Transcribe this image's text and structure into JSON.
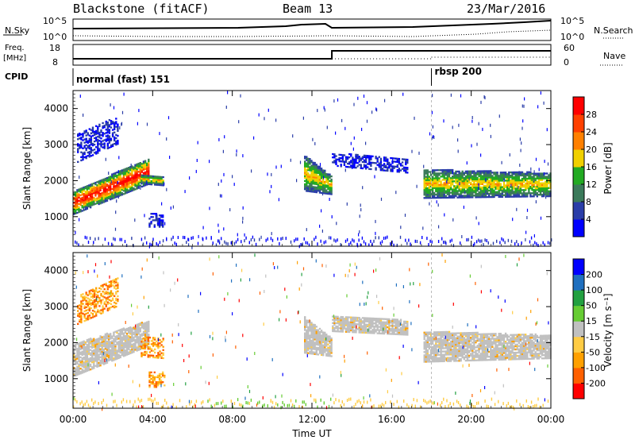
{
  "header": {
    "station": "Blackstone (fitACF)",
    "beam": "Beam 13",
    "date": "23/Mar/2016"
  },
  "noise_panel": {
    "left_label": "N.Sky",
    "right_label": "N.Search",
    "left_ticks": [
      "10^5",
      "10^0"
    ],
    "right_ticks": [
      "10^5",
      "10^0"
    ]
  },
  "freq_panel": {
    "left_label_top": "Freq.",
    "left_label_unit": "[MHz]",
    "right_label": "Nave",
    "left_ticks": [
      "18",
      "8"
    ],
    "right_ticks": [
      "60",
      "0"
    ],
    "freq_step_time_h": 13.0
  },
  "cpid_panel": {
    "label": "CPID",
    "segments": [
      {
        "start_h": 0.0,
        "name": "normal (fast) 151"
      },
      {
        "start_h": 18.0,
        "name": "rbsp 200"
      }
    ]
  },
  "colors": {
    "power_scale": [
      "#0000ff",
      "#2a3da8",
      "#3b7a5a",
      "#22aa22",
      "#f0d000",
      "#ff8000",
      "#ff4000",
      "#ff0000"
    ],
    "velocity_scale": [
      "#ff0000",
      "#ff6000",
      "#ffa000",
      "#ffcc44",
      "#c0c0c0",
      "#66cc33",
      "#22a040",
      "#1f6fbf",
      "#0000ff"
    ],
    "ground_scatter": "#c0c0c0",
    "frame": "#000000"
  },
  "chart_data": [
    {
      "type": "heatmap",
      "panel": "power",
      "xlabel": "",
      "ylabel": "Slant Range [km]",
      "xlim_h": [
        0,
        24
      ],
      "ylim_km": [
        180,
        4500
      ],
      "y_ticks": [
        1000,
        2000,
        3000,
        4000
      ],
      "y_tick_labels": [
        "1000",
        "2000",
        "3000",
        "4000"
      ],
      "colorbar": {
        "label": "Power [dB]",
        "ticks": [
          "4",
          "8",
          "12",
          "16",
          "20",
          "24",
          "28"
        ],
        "range": [
          0,
          32
        ]
      },
      "echo_regions": [
        {
          "t0": 0.0,
          "t1": 3.8,
          "r0_start": 1050,
          "r1_start": 1700,
          "r0_end": 1900,
          "r1_end": 2600,
          "level": "high"
        },
        {
          "t0": 0.2,
          "t1": 2.2,
          "r0_start": 2500,
          "r1_start": 3300,
          "r0_end": 3000,
          "r1_end": 3800,
          "level": "low"
        },
        {
          "t0": 3.4,
          "t1": 4.5,
          "r0_start": 1900,
          "r1_start": 2150,
          "r0_end": 1850,
          "r1_end": 2100,
          "level": "mid"
        },
        {
          "t0": 3.8,
          "t1": 4.5,
          "r0_start": 700,
          "r1_start": 1100,
          "r0_end": 700,
          "r1_end": 1050,
          "level": "low"
        },
        {
          "t0": 11.6,
          "t1": 13.0,
          "r0_start": 1700,
          "r1_start": 2700,
          "r0_end": 1600,
          "r1_end": 2100,
          "level": "mid"
        },
        {
          "t0": 13.0,
          "t1": 16.8,
          "r0_start": 2400,
          "r1_start": 2750,
          "r0_end": 2200,
          "r1_end": 2600,
          "level": "low"
        },
        {
          "t0": 17.6,
          "t1": 24.0,
          "r0_start": 1500,
          "r1_start": 2300,
          "r0_end": 1550,
          "r1_end": 2200,
          "level": "mid"
        }
      ],
      "ground_scatter_band_km": [
        180,
        420
      ]
    },
    {
      "type": "heatmap",
      "panel": "velocity",
      "xlabel": "Time UT",
      "ylabel": "Slant Range [km]",
      "xlim_h": [
        0,
        24
      ],
      "ylim_km": [
        180,
        4500
      ],
      "x_ticks_h": [
        0,
        4,
        8,
        12,
        16,
        20,
        24
      ],
      "x_tick_labels": [
        "00:00",
        "04:00",
        "08:00",
        "12:00",
        "16:00",
        "20:00",
        "00:00"
      ],
      "y_ticks": [
        1000,
        2000,
        3000,
        4000
      ],
      "y_tick_labels": [
        "1000",
        "2000",
        "3000",
        "4000"
      ],
      "colorbar": {
        "label": "Velocity [m s⁻¹]",
        "ticks": [
          "-200",
          "-100",
          "-50",
          "-15",
          "15",
          "50",
          "100",
          "200"
        ],
        "range": [
          -250,
          250
        ]
      },
      "echo_regions": [
        {
          "t0": 0.0,
          "t1": 3.8,
          "r0_start": 1050,
          "r1_start": 1950,
          "r0_end": 1900,
          "r1_end": 2600,
          "level": "gs"
        },
        {
          "t0": 0.2,
          "t1": 2.2,
          "r0_start": 2500,
          "r1_start": 3300,
          "r0_end": 3000,
          "r1_end": 3800,
          "level": "neg"
        },
        {
          "t0": 3.4,
          "t1": 4.5,
          "r0_start": 1600,
          "r1_start": 2150,
          "r0_end": 1550,
          "r1_end": 2100,
          "level": "neg"
        },
        {
          "t0": 3.8,
          "t1": 4.6,
          "r0_start": 750,
          "r1_start": 1200,
          "r0_end": 750,
          "r1_end": 1150,
          "level": "neg"
        },
        {
          "t0": 11.6,
          "t1": 13.0,
          "r0_start": 1700,
          "r1_start": 2700,
          "r0_end": 1600,
          "r1_end": 2100,
          "level": "gs"
        },
        {
          "t0": 13.0,
          "t1": 16.8,
          "r0_start": 2300,
          "r1_start": 2750,
          "r0_end": 2200,
          "r1_end": 2600,
          "level": "gs"
        },
        {
          "t0": 17.6,
          "t1": 24.0,
          "r0_start": 1450,
          "r1_start": 2300,
          "r0_end": 1550,
          "r1_end": 2200,
          "level": "gs"
        }
      ],
      "ground_scatter_band_km": [
        180,
        420
      ]
    }
  ]
}
